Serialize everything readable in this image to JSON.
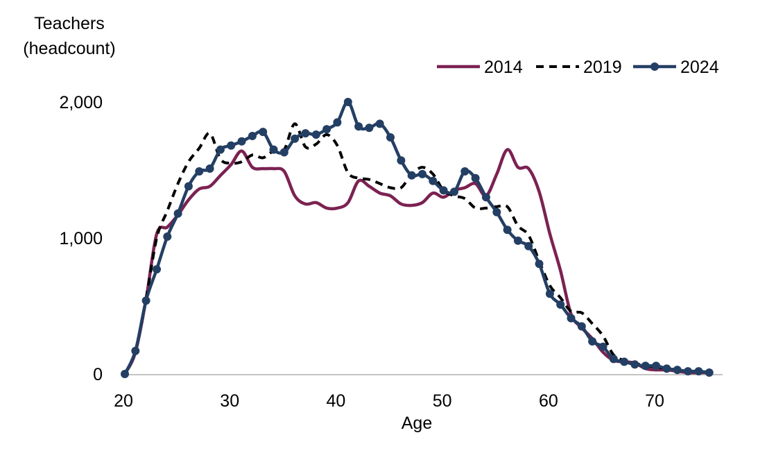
{
  "chart_data": {
    "type": "line",
    "title": "",
    "ylabel": [
      "Teachers",
      "(headcount)"
    ],
    "xlabel": "Age",
    "xlim": [
      20,
      76
    ],
    "ylim": [
      0,
      2000
    ],
    "x_ticks": [
      "20",
      "30",
      "40",
      "50",
      "60",
      "70"
    ],
    "x_tick_values": [
      20,
      30,
      40,
      50,
      60,
      70
    ],
    "y_ticks": [
      "0",
      "1,000",
      "2,000"
    ],
    "y_tick_values": [
      0,
      1000,
      2000
    ],
    "grid": false,
    "legend_position": "top-right",
    "series": [
      {
        "name": "2014",
        "color": "#7b2252",
        "style": "solid",
        "markers": false,
        "x": [
          20,
          21,
          22,
          23,
          24,
          25,
          26,
          27,
          28,
          29,
          30,
          31,
          32,
          33,
          34,
          35,
          36,
          37,
          38,
          39,
          40,
          41,
          42,
          43,
          44,
          45,
          46,
          47,
          48,
          49,
          50,
          51,
          52,
          53,
          54,
          55,
          56,
          57,
          58,
          59,
          60,
          61,
          62,
          63,
          64,
          65,
          66,
          67,
          68,
          69,
          70,
          71,
          72,
          73,
          74,
          75
        ],
        "values": [
          0,
          160,
          550,
          1030,
          1080,
          1170,
          1280,
          1360,
          1380,
          1460,
          1540,
          1640,
          1520,
          1510,
          1510,
          1490,
          1310,
          1250,
          1260,
          1220,
          1220,
          1260,
          1420,
          1380,
          1330,
          1310,
          1250,
          1240,
          1260,
          1330,
          1300,
          1350,
          1370,
          1400,
          1310,
          1470,
          1650,
          1520,
          1510,
          1340,
          1030,
          760,
          440,
          340,
          260,
          160,
          100,
          90,
          80,
          40,
          30,
          30,
          20,
          10,
          10,
          10
        ]
      },
      {
        "name": "2019",
        "color": "#000000",
        "style": "dashed",
        "markers": false,
        "x": [
          20,
          21,
          22,
          23,
          24,
          25,
          26,
          27,
          28,
          29,
          30,
          31,
          32,
          33,
          34,
          35,
          36,
          37,
          38,
          39,
          40,
          41,
          42,
          43,
          44,
          45,
          46,
          47,
          48,
          49,
          50,
          51,
          52,
          53,
          54,
          55,
          56,
          57,
          58,
          59,
          60,
          61,
          62,
          63,
          64,
          65,
          66,
          67,
          68,
          69,
          70,
          71,
          72,
          73,
          74,
          75
        ],
        "values": [
          0,
          170,
          550,
          1000,
          1200,
          1400,
          1560,
          1660,
          1770,
          1580,
          1550,
          1560,
          1610,
          1590,
          1640,
          1650,
          1840,
          1670,
          1690,
          1760,
          1680,
          1480,
          1440,
          1430,
          1400,
          1370,
          1370,
          1470,
          1520,
          1470,
          1350,
          1310,
          1290,
          1220,
          1220,
          1230,
          1230,
          1090,
          1020,
          830,
          650,
          560,
          460,
          450,
          370,
          280,
          140,
          100,
          80,
          60,
          50,
          40,
          30,
          20,
          20,
          10
        ]
      },
      {
        "name": "2024",
        "color": "#243f64",
        "style": "solid",
        "markers": true,
        "x": [
          20,
          21,
          22,
          23,
          24,
          25,
          26,
          27,
          28,
          29,
          30,
          31,
          32,
          33,
          34,
          35,
          36,
          37,
          38,
          39,
          40,
          41,
          42,
          43,
          44,
          45,
          46,
          47,
          48,
          49,
          50,
          51,
          52,
          53,
          54,
          55,
          56,
          57,
          58,
          59,
          60,
          61,
          62,
          63,
          64,
          65,
          66,
          67,
          68,
          69,
          70,
          71,
          72,
          73,
          74,
          75
        ],
        "values": [
          0,
          170,
          540,
          770,
          1010,
          1180,
          1380,
          1490,
          1510,
          1650,
          1680,
          1710,
          1750,
          1780,
          1650,
          1630,
          1730,
          1770,
          1760,
          1800,
          1850,
          2000,
          1820,
          1810,
          1840,
          1740,
          1570,
          1460,
          1470,
          1420,
          1350,
          1340,
          1490,
          1440,
          1300,
          1190,
          1060,
          980,
          940,
          810,
          590,
          510,
          410,
          350,
          240,
          200,
          110,
          90,
          70,
          60,
          60,
          40,
          30,
          20,
          20,
          10
        ]
      }
    ]
  }
}
